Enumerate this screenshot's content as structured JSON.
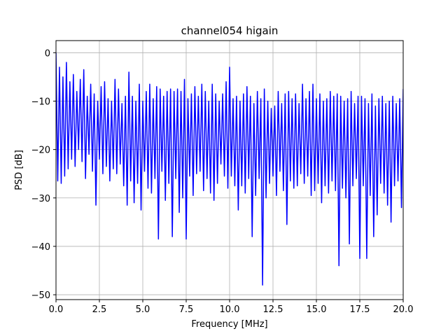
{
  "chart_data": {
    "type": "line",
    "title": "channel054 higain",
    "xlabel": "Frequency [MHz]",
    "ylabel": "PSD [dB]",
    "xlim": [
      0,
      20
    ],
    "ylim": [
      -51,
      2.5
    ],
    "x_ticks": [
      0.0,
      2.5,
      5.0,
      7.5,
      10.0,
      12.5,
      15.0,
      17.5,
      20.0
    ],
    "x_tick_labels": [
      "0.0",
      "2.5",
      "5.0",
      "7.5",
      "10.0",
      "12.5",
      "15.0",
      "17.5",
      "20.0"
    ],
    "y_ticks": [
      0,
      -10,
      -20,
      -30,
      -40,
      -50
    ],
    "y_tick_labels": [
      "0",
      "−10",
      "−20",
      "−30",
      "−40",
      "−50"
    ],
    "grid": true,
    "series": [
      {
        "color": "#0000ff",
        "x": [
          0.0,
          0.1,
          0.2,
          0.3,
          0.4,
          0.5,
          0.6,
          0.7,
          0.8,
          0.9,
          1.0,
          1.1,
          1.2,
          1.3,
          1.4,
          1.5,
          1.6,
          1.7,
          1.8,
          1.9,
          2.0,
          2.1,
          2.2,
          2.3,
          2.4,
          2.5,
          2.6,
          2.7,
          2.8,
          2.9,
          3.0,
          3.1,
          3.2,
          3.3,
          3.4,
          3.5,
          3.6,
          3.7,
          3.8,
          3.9,
          4.0,
          4.1,
          4.2,
          4.3,
          4.4,
          4.5,
          4.6,
          4.7,
          4.8,
          4.9,
          5.0,
          5.1,
          5.2,
          5.3,
          5.4,
          5.5,
          5.6,
          5.7,
          5.8,
          5.9,
          6.0,
          6.1,
          6.2,
          6.3,
          6.4,
          6.5,
          6.6,
          6.7,
          6.8,
          6.9,
          7.0,
          7.1,
          7.2,
          7.3,
          7.4,
          7.5,
          7.6,
          7.7,
          7.8,
          7.9,
          8.0,
          8.1,
          8.2,
          8.3,
          8.4,
          8.5,
          8.6,
          8.7,
          8.8,
          8.9,
          9.0,
          9.1,
          9.2,
          9.3,
          9.4,
          9.5,
          9.6,
          9.7,
          9.8,
          9.9,
          10.0,
          10.1,
          10.2,
          10.3,
          10.4,
          10.5,
          10.6,
          10.7,
          10.8,
          10.9,
          11.0,
          11.1,
          11.2,
          11.3,
          11.4,
          11.5,
          11.6,
          11.7,
          11.8,
          11.9,
          12.0,
          12.1,
          12.2,
          12.3,
          12.4,
          12.5,
          12.6,
          12.7,
          12.8,
          12.9,
          13.0,
          13.1,
          13.2,
          13.3,
          13.4,
          13.5,
          13.6,
          13.7,
          13.8,
          13.9,
          14.0,
          14.1,
          14.2,
          14.3,
          14.4,
          14.5,
          14.6,
          14.7,
          14.8,
          14.9,
          15.0,
          15.1,
          15.2,
          15.3,
          15.4,
          15.5,
          15.6,
          15.7,
          15.8,
          15.9,
          16.0,
          16.1,
          16.2,
          16.3,
          16.4,
          16.5,
          16.6,
          16.7,
          16.8,
          16.9,
          17.0,
          17.1,
          17.2,
          17.3,
          17.4,
          17.5,
          17.6,
          17.7,
          17.8,
          17.9,
          18.0,
          18.1,
          18.2,
          18.3,
          18.4,
          18.5,
          18.6,
          18.7,
          18.8,
          18.9,
          19.0,
          19.1,
          19.2,
          19.3,
          19.4,
          19.5,
          19.6,
          19.7,
          19.8,
          19.9,
          20.0
        ],
        "y": [
          0.0,
          -26.5,
          -3.0,
          -27.0,
          -5.0,
          -25.5,
          -2.0,
          -24.0,
          -6.0,
          -22.0,
          -4.5,
          -23.5,
          -8.0,
          -20.0,
          -5.5,
          -22.5,
          -3.5,
          -26.0,
          -9.0,
          -21.0,
          -6.5,
          -24.5,
          -8.5,
          -31.5,
          -10.0,
          -22.0,
          -7.0,
          -25.0,
          -6.0,
          -23.5,
          -9.5,
          -26.5,
          -10.0,
          -24.0,
          -5.5,
          -25.0,
          -7.5,
          -23.0,
          -10.5,
          -27.5,
          -9.0,
          -31.5,
          -4.0,
          -26.5,
          -9.0,
          -31.0,
          -10.0,
          -27.0,
          -6.5,
          -32.5,
          -10.0,
          -24.5,
          -8.0,
          -28.0,
          -6.5,
          -29.0,
          -9.5,
          -26.0,
          -7.0,
          -38.5,
          -7.5,
          -24.5,
          -9.0,
          -30.5,
          -8.0,
          -27.0,
          -7.5,
          -38.0,
          -8.0,
          -26.0,
          -7.5,
          -33.0,
          -8.0,
          -30.0,
          -5.5,
          -38.5,
          -9.5,
          -25.5,
          -8.5,
          -29.5,
          -7.0,
          -25.0,
          -9.0,
          -24.5,
          -6.5,
          -28.5,
          -8.0,
          -26.0,
          -10.0,
          -29.0,
          -6.5,
          -30.5,
          -8.5,
          -27.0,
          -10.0,
          -23.0,
          -8.5,
          -25.5,
          -6.0,
          -28.0,
          -3.0,
          -25.5,
          -9.5,
          -27.5,
          -9.0,
          -32.5,
          -10.0,
          -27.5,
          -8.5,
          -29.0,
          -7.0,
          -26.0,
          -9.0,
          -38.0,
          -10.5,
          -29.5,
          -8.0,
          -26.0,
          -9.5,
          -48.0,
          -7.5,
          -30.0,
          -10.0,
          -27.0,
          -11.5,
          -25.5,
          -11.0,
          -29.5,
          -8.0,
          -24.5,
          -10.5,
          -28.5,
          -8.5,
          -35.5,
          -8.0,
          -26.5,
          -9.5,
          -28.0,
          -8.5,
          -27.5,
          -10.5,
          -25.0,
          -6.5,
          -27.0,
          -9.5,
          -25.5,
          -8.0,
          -29.5,
          -6.5,
          -28.5,
          -9.5,
          -27.0,
          -8.5,
          -31.0,
          -10.0,
          -27.5,
          -9.5,
          -29.0,
          -8.0,
          -26.5,
          -9.0,
          -28.5,
          -8.5,
          -44.0,
          -9.0,
          -28.0,
          -10.0,
          -30.0,
          -9.5,
          -39.5,
          -8.0,
          -27.5,
          -10.5,
          -26.0,
          -9.0,
          -42.5,
          -9.0,
          -27.5,
          -9.5,
          -42.5,
          -10.5,
          -29.5,
          -8.5,
          -38.0,
          -11.0,
          -33.5,
          -9.5,
          -27.0,
          -9.0,
          -29.0,
          -10.5,
          -31.5,
          -10.0,
          -35.0,
          -9.0,
          -27.5,
          -10.5,
          -26.5,
          -9.5,
          -32.0,
          -7.5
        ]
      }
    ]
  }
}
